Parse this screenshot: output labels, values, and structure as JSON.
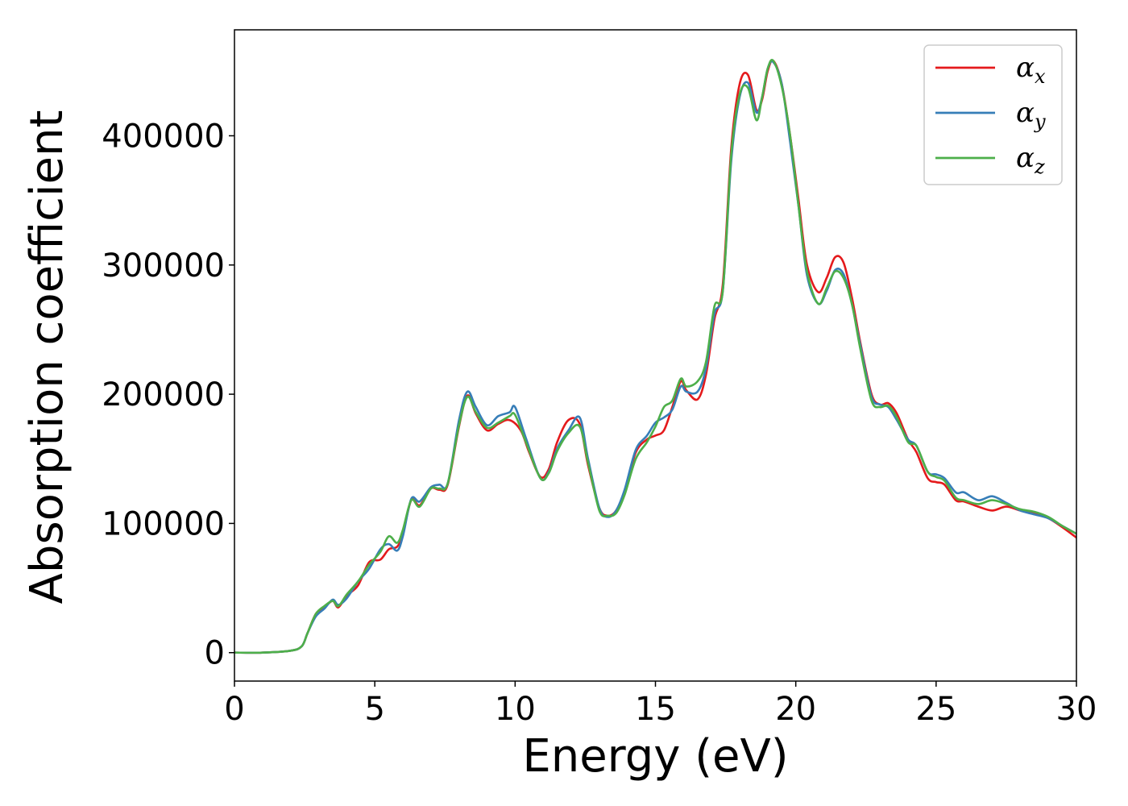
{
  "chart_data": {
    "type": "line",
    "title": "",
    "xlabel": "Energy (eV)",
    "ylabel": "Absorption coefficient",
    "xlim": [
      0,
      30
    ],
    "ylim": [
      -22000,
      482000
    ],
    "xticks": [
      0,
      5,
      10,
      15,
      20,
      25,
      30
    ],
    "xtick_labels": [
      "0",
      "5",
      "10",
      "15",
      "20",
      "25",
      "30"
    ],
    "yticks": [
      0,
      100000,
      200000,
      300000,
      400000
    ],
    "ytick_labels": [
      "0",
      "100000",
      "200000",
      "300000",
      "400000"
    ],
    "grid": false,
    "legend_position": "top-right",
    "colors": {
      "x": "#e41a1c",
      "y": "#377eb8",
      "z": "#4daf4a"
    },
    "series": [
      {
        "name": "α_x",
        "symbol": "α",
        "subscript": "x",
        "color": "#e41a1c",
        "points": [
          [
            0,
            0
          ],
          [
            1,
            0
          ],
          [
            2,
            1500
          ],
          [
            2.4,
            5000
          ],
          [
            2.6,
            15000
          ],
          [
            2.9,
            30000
          ],
          [
            3.2,
            35000
          ],
          [
            3.5,
            40000
          ],
          [
            3.7,
            35000
          ],
          [
            4,
            44000
          ],
          [
            4.4,
            52000
          ],
          [
            4.8,
            70000
          ],
          [
            5.2,
            72000
          ],
          [
            5.5,
            80000
          ],
          [
            5.8,
            82000
          ],
          [
            6.0,
            92000
          ],
          [
            6.3,
            118000
          ],
          [
            6.6,
            114000
          ],
          [
            7.0,
            127000
          ],
          [
            7.3,
            126000
          ],
          [
            7.6,
            130000
          ],
          [
            8.0,
            175000
          ],
          [
            8.3,
            199000
          ],
          [
            8.6,
            185000
          ],
          [
            9.0,
            172000
          ],
          [
            9.4,
            177000
          ],
          [
            9.8,
            180000
          ],
          [
            10.2,
            172000
          ],
          [
            10.5,
            155000
          ],
          [
            10.9,
            136000
          ],
          [
            11.2,
            142000
          ],
          [
            11.5,
            163000
          ],
          [
            11.9,
            180000
          ],
          [
            12.3,
            177000
          ],
          [
            12.6,
            145000
          ],
          [
            13.0,
            112000
          ],
          [
            13.3,
            106000
          ],
          [
            13.6,
            110000
          ],
          [
            13.9,
            125000
          ],
          [
            14.3,
            155000
          ],
          [
            14.7,
            165000
          ],
          [
            15.0,
            168000
          ],
          [
            15.3,
            172000
          ],
          [
            15.6,
            190000
          ],
          [
            15.9,
            210000
          ],
          [
            16.1,
            203000
          ],
          [
            16.5,
            196000
          ],
          [
            16.8,
            215000
          ],
          [
            17.1,
            258000
          ],
          [
            17.4,
            285000
          ],
          [
            17.7,
            390000
          ],
          [
            18.0,
            440000
          ],
          [
            18.3,
            447000
          ],
          [
            18.6,
            420000
          ],
          [
            18.8,
            428000
          ],
          [
            19.0,
            450000
          ],
          [
            19.2,
            458000
          ],
          [
            19.5,
            440000
          ],
          [
            19.8,
            400000
          ],
          [
            20.1,
            350000
          ],
          [
            20.4,
            300000
          ],
          [
            20.8,
            279000
          ],
          [
            21.1,
            290000
          ],
          [
            21.4,
            306000
          ],
          [
            21.7,
            302000
          ],
          [
            22.0,
            275000
          ],
          [
            22.3,
            240000
          ],
          [
            22.7,
            200000
          ],
          [
            23.0,
            192000
          ],
          [
            23.3,
            193000
          ],
          [
            23.6,
            185000
          ],
          [
            24.0,
            165000
          ],
          [
            24.3,
            155000
          ],
          [
            24.7,
            135000
          ],
          [
            25.0,
            132000
          ],
          [
            25.3,
            130000
          ],
          [
            25.7,
            118000
          ],
          [
            26.0,
            117000
          ],
          [
            26.5,
            113000
          ],
          [
            27.0,
            110000
          ],
          [
            27.5,
            113000
          ],
          [
            28.0,
            110000
          ],
          [
            28.5,
            108000
          ],
          [
            29.0,
            104000
          ],
          [
            29.5,
            97000
          ],
          [
            30,
            89000
          ]
        ]
      },
      {
        "name": "α_y",
        "symbol": "α",
        "subscript": "y",
        "color": "#377eb8",
        "points": [
          [
            0,
            0
          ],
          [
            1,
            0
          ],
          [
            2,
            1500
          ],
          [
            2.4,
            5000
          ],
          [
            2.6,
            15000
          ],
          [
            2.9,
            28000
          ],
          [
            3.2,
            34000
          ],
          [
            3.5,
            41000
          ],
          [
            3.7,
            37000
          ],
          [
            4,
            42000
          ],
          [
            4.4,
            55000
          ],
          [
            4.8,
            65000
          ],
          [
            5.2,
            80000
          ],
          [
            5.5,
            84000
          ],
          [
            5.8,
            79000
          ],
          [
            6.0,
            90000
          ],
          [
            6.3,
            119000
          ],
          [
            6.6,
            117000
          ],
          [
            7.0,
            128000
          ],
          [
            7.3,
            130000
          ],
          [
            7.6,
            131000
          ],
          [
            8.0,
            180000
          ],
          [
            8.3,
            202000
          ],
          [
            8.6,
            190000
          ],
          [
            9.0,
            176000
          ],
          [
            9.4,
            183000
          ],
          [
            9.8,
            186000
          ],
          [
            10.0,
            190000
          ],
          [
            10.4,
            165000
          ],
          [
            10.9,
            135000
          ],
          [
            11.2,
            140000
          ],
          [
            11.5,
            158000
          ],
          [
            11.9,
            172000
          ],
          [
            12.3,
            182000
          ],
          [
            12.6,
            150000
          ],
          [
            13.0,
            112000
          ],
          [
            13.3,
            105000
          ],
          [
            13.6,
            110000
          ],
          [
            13.9,
            126000
          ],
          [
            14.3,
            157000
          ],
          [
            14.7,
            168000
          ],
          [
            15.0,
            178000
          ],
          [
            15.3,
            182000
          ],
          [
            15.6,
            188000
          ],
          [
            15.9,
            206000
          ],
          [
            16.1,
            202000
          ],
          [
            16.5,
            202000
          ],
          [
            16.8,
            220000
          ],
          [
            17.1,
            262000
          ],
          [
            17.4,
            280000
          ],
          [
            17.7,
            380000
          ],
          [
            18.0,
            430000
          ],
          [
            18.3,
            441000
          ],
          [
            18.6,
            418000
          ],
          [
            18.8,
            430000
          ],
          [
            19.0,
            452000
          ],
          [
            19.2,
            457000
          ],
          [
            19.5,
            440000
          ],
          [
            19.8,
            395000
          ],
          [
            20.1,
            345000
          ],
          [
            20.4,
            292000
          ],
          [
            20.8,
            270000
          ],
          [
            21.1,
            280000
          ],
          [
            21.4,
            296000
          ],
          [
            21.7,
            293000
          ],
          [
            22.0,
            270000
          ],
          [
            22.3,
            238000
          ],
          [
            22.7,
            198000
          ],
          [
            23.0,
            192000
          ],
          [
            23.3,
            190000
          ],
          [
            23.6,
            180000
          ],
          [
            24.0,
            165000
          ],
          [
            24.3,
            160000
          ],
          [
            24.7,
            140000
          ],
          [
            25.0,
            138000
          ],
          [
            25.3,
            135000
          ],
          [
            25.7,
            124000
          ],
          [
            26.0,
            124000
          ],
          [
            26.5,
            118000
          ],
          [
            27.0,
            121000
          ],
          [
            27.5,
            116000
          ],
          [
            28.0,
            110000
          ],
          [
            28.5,
            107000
          ],
          [
            29.0,
            104000
          ],
          [
            29.5,
            98000
          ],
          [
            30,
            92000
          ]
        ]
      },
      {
        "name": "α_z",
        "symbol": "α",
        "subscript": "z",
        "color": "#4daf4a",
        "points": [
          [
            0,
            0
          ],
          [
            1,
            0
          ],
          [
            2,
            1500
          ],
          [
            2.4,
            5000
          ],
          [
            2.6,
            15000
          ],
          [
            2.9,
            30000
          ],
          [
            3.2,
            36000
          ],
          [
            3.5,
            40000
          ],
          [
            3.7,
            36000
          ],
          [
            4,
            45000
          ],
          [
            4.4,
            55000
          ],
          [
            4.8,
            68000
          ],
          [
            5.2,
            78000
          ],
          [
            5.5,
            90000
          ],
          [
            5.8,
            85000
          ],
          [
            6.0,
            95000
          ],
          [
            6.3,
            118000
          ],
          [
            6.6,
            113000
          ],
          [
            7.0,
            127000
          ],
          [
            7.3,
            127000
          ],
          [
            7.6,
            131000
          ],
          [
            8.0,
            176000
          ],
          [
            8.3,
            198000
          ],
          [
            8.6,
            186000
          ],
          [
            9.0,
            174000
          ],
          [
            9.4,
            178000
          ],
          [
            9.8,
            183000
          ],
          [
            10.0,
            184000
          ],
          [
            10.4,
            162000
          ],
          [
            10.9,
            135000
          ],
          [
            11.2,
            139000
          ],
          [
            11.5,
            156000
          ],
          [
            11.9,
            170000
          ],
          [
            12.3,
            175000
          ],
          [
            12.6,
            147000
          ],
          [
            13.0,
            110000
          ],
          [
            13.3,
            106000
          ],
          [
            13.6,
            108000
          ],
          [
            13.9,
            122000
          ],
          [
            14.3,
            150000
          ],
          [
            14.7,
            163000
          ],
          [
            15.0,
            175000
          ],
          [
            15.3,
            190000
          ],
          [
            15.6,
            195000
          ],
          [
            15.9,
            212000
          ],
          [
            16.1,
            206000
          ],
          [
            16.5,
            210000
          ],
          [
            16.8,
            225000
          ],
          [
            17.1,
            268000
          ],
          [
            17.4,
            280000
          ],
          [
            17.7,
            385000
          ],
          [
            18.0,
            432000
          ],
          [
            18.3,
            437000
          ],
          [
            18.6,
            412000
          ],
          [
            18.8,
            430000
          ],
          [
            19.0,
            452000
          ],
          [
            19.2,
            458000
          ],
          [
            19.5,
            438000
          ],
          [
            19.8,
            400000
          ],
          [
            20.1,
            345000
          ],
          [
            20.4,
            295000
          ],
          [
            20.8,
            270000
          ],
          [
            21.1,
            282000
          ],
          [
            21.4,
            295000
          ],
          [
            21.7,
            290000
          ],
          [
            22.0,
            270000
          ],
          [
            22.3,
            235000
          ],
          [
            22.7,
            195000
          ],
          [
            23.0,
            190000
          ],
          [
            23.3,
            191000
          ],
          [
            23.6,
            182000
          ],
          [
            24.0,
            163000
          ],
          [
            24.3,
            160000
          ],
          [
            24.7,
            140000
          ],
          [
            25.0,
            136000
          ],
          [
            25.3,
            133000
          ],
          [
            25.7,
            120000
          ],
          [
            26.0,
            118000
          ],
          [
            26.5,
            115000
          ],
          [
            27.0,
            118000
          ],
          [
            27.5,
            115000
          ],
          [
            28.0,
            111000
          ],
          [
            28.5,
            109000
          ],
          [
            29.0,
            105000
          ],
          [
            29.5,
            98000
          ],
          [
            30,
            92000
          ]
        ]
      }
    ]
  }
}
